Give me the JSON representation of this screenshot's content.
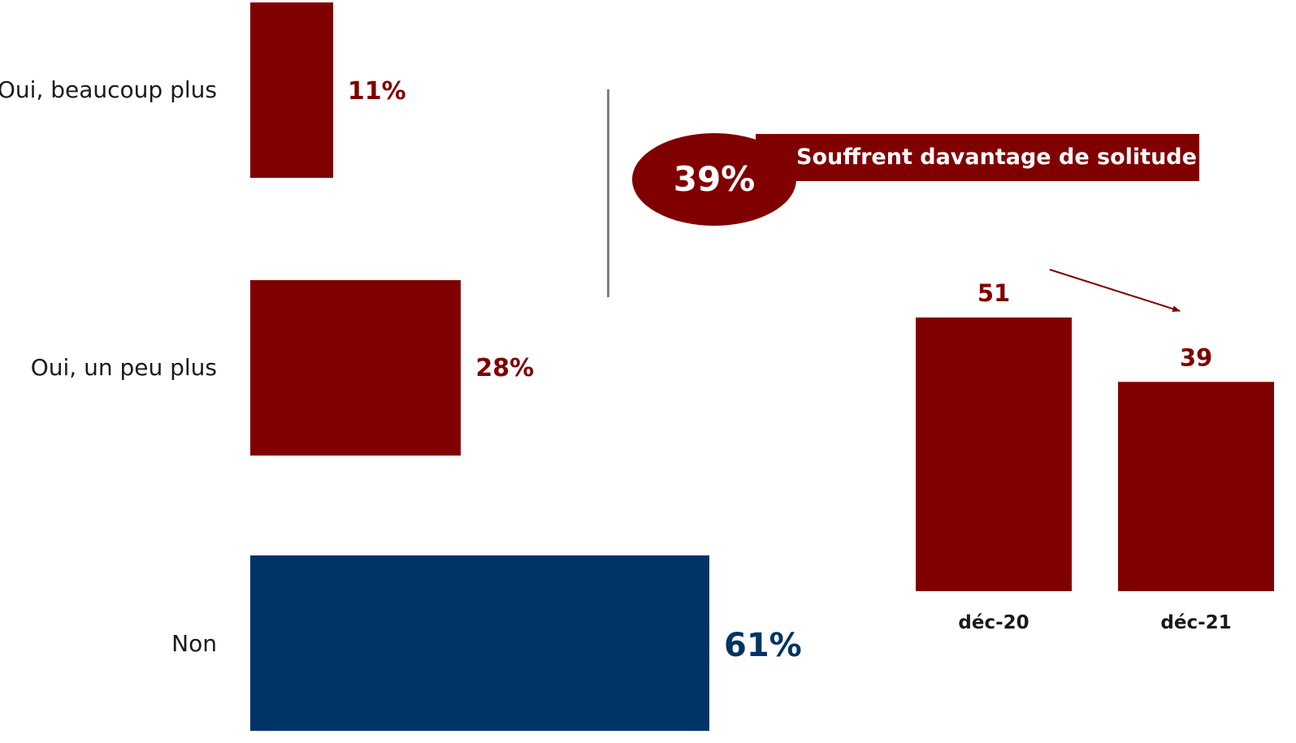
{
  "colors": {
    "accent": "#800000",
    "non": "#003366"
  },
  "chart_data": [
    {
      "type": "bar",
      "orientation": "horizontal",
      "categories": [
        "Oui, beaucoup plus",
        "Oui, un peu plus",
        "Non"
      ],
      "values": [
        11,
        28,
        61
      ],
      "value_labels": [
        "11%",
        "28%",
        "61%"
      ],
      "colors": [
        "#800000",
        "#800000",
        "#003366"
      ],
      "xlim": [
        0,
        61
      ]
    },
    {
      "type": "bar",
      "orientation": "vertical",
      "categories": [
        "déc-20",
        "déc-21"
      ],
      "values": [
        51,
        39
      ],
      "value_labels": [
        "51",
        "39"
      ],
      "ylim": [
        0,
        51
      ],
      "trend": "down"
    }
  ],
  "callout": {
    "value": "39%",
    "text": "Souffrent davantage de solitude"
  }
}
